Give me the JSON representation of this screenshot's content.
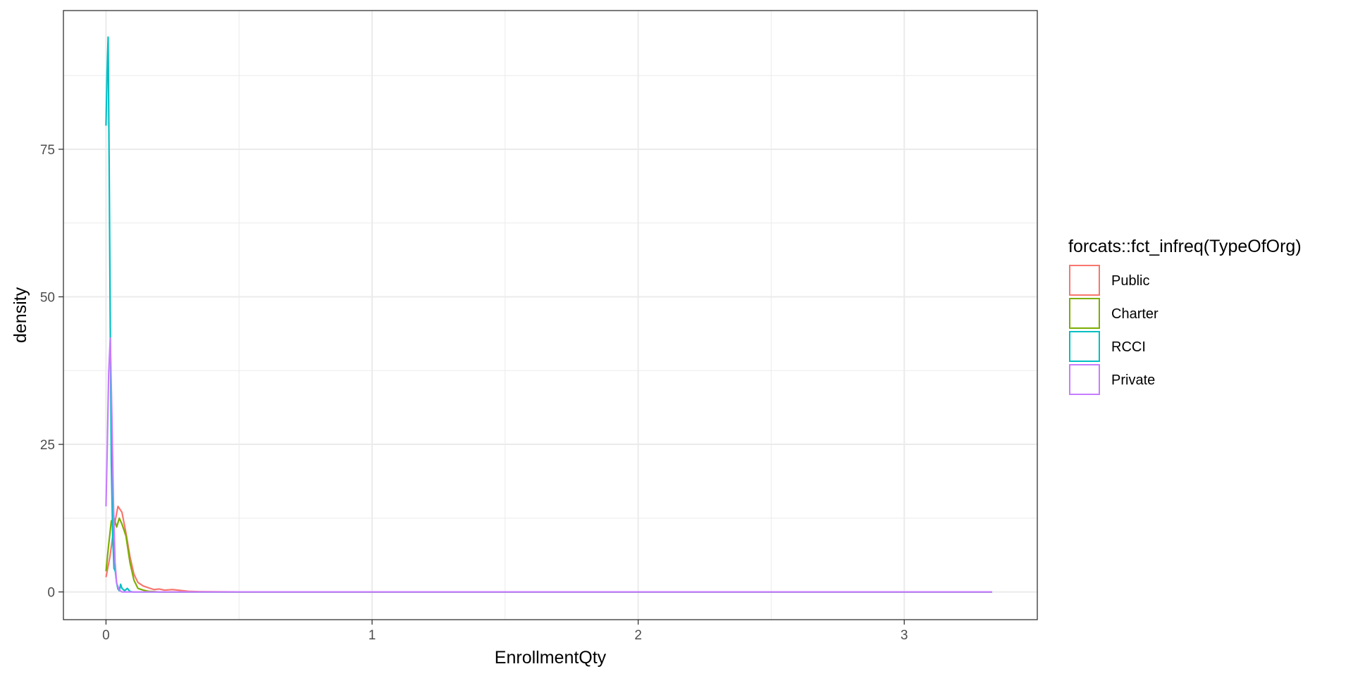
{
  "chart_data": {
    "type": "line",
    "xlabel": "EnrollmentQty",
    "ylabel": "density",
    "xlim": [
      -0.16,
      3.5
    ],
    "ylim": [
      -4.7,
      98.5
    ],
    "x_ticks": [
      0,
      1,
      2,
      3
    ],
    "y_ticks": [
      0,
      25,
      50,
      75
    ],
    "x_tick_labels": [
      "0",
      "1",
      "2",
      "3"
    ],
    "y_tick_labels": [
      "0",
      "25",
      "50",
      "75"
    ],
    "grid": true,
    "legend": {
      "title": "forcats::fct_infreq(TypeOfOrg)",
      "position": "right"
    },
    "series": [
      {
        "name": "Public",
        "color": "#F8766D",
        "points": [
          [
            0,
            2.5
          ],
          [
            0.015,
            6
          ],
          [
            0.03,
            11
          ],
          [
            0.045,
            14.5
          ],
          [
            0.06,
            13.5
          ],
          [
            0.075,
            10
          ],
          [
            0.09,
            6
          ],
          [
            0.105,
            3
          ],
          [
            0.12,
            1.6
          ],
          [
            0.14,
            1.0
          ],
          [
            0.16,
            0.7
          ],
          [
            0.18,
            0.4
          ],
          [
            0.2,
            0.5
          ],
          [
            0.22,
            0.3
          ],
          [
            0.25,
            0.4
          ],
          [
            0.28,
            0.25
          ],
          [
            0.31,
            0.1
          ],
          [
            0.35,
            0.05
          ],
          [
            0.5,
            0
          ],
          [
            1.0,
            0
          ],
          [
            2.0,
            0
          ],
          [
            3.33,
            0
          ]
        ]
      },
      {
        "name": "Charter",
        "color": "#7CAE00",
        "points": [
          [
            0,
            3.5
          ],
          [
            0.01,
            8
          ],
          [
            0.02,
            12
          ],
          [
            0.03,
            12.5
          ],
          [
            0.04,
            11
          ],
          [
            0.05,
            12.5
          ],
          [
            0.06,
            11.5
          ],
          [
            0.075,
            9.5
          ],
          [
            0.09,
            5
          ],
          [
            0.105,
            2
          ],
          [
            0.12,
            0.6
          ],
          [
            0.14,
            0.3
          ],
          [
            0.16,
            0.1
          ],
          [
            0.2,
            0
          ],
          [
            0.5,
            0
          ],
          [
            1.0,
            0
          ],
          [
            2.0,
            0
          ],
          [
            3.33,
            0
          ]
        ]
      },
      {
        "name": "RCCI",
        "color": "#00BFC4",
        "points": [
          [
            0,
            79
          ],
          [
            0.004,
            88
          ],
          [
            0.008,
            94
          ],
          [
            0.012,
            72
          ],
          [
            0.016,
            45
          ],
          [
            0.02,
            22
          ],
          [
            0.025,
            10
          ],
          [
            0.03,
            4
          ],
          [
            0.035,
            3.5
          ],
          [
            0.04,
            1.5
          ],
          [
            0.045,
            0.5
          ],
          [
            0.05,
            0.2
          ],
          [
            0.055,
            1.3
          ],
          [
            0.06,
            0.6
          ],
          [
            0.07,
            0.2
          ],
          [
            0.08,
            0.6
          ],
          [
            0.09,
            0.1
          ],
          [
            0.1,
            0
          ],
          [
            0.3,
            0
          ],
          [
            1.0,
            0
          ],
          [
            2.0,
            0
          ],
          [
            3.33,
            0
          ]
        ]
      },
      {
        "name": "Private",
        "color": "#C77CFF",
        "points": [
          [
            0,
            14.5
          ],
          [
            0.005,
            25
          ],
          [
            0.01,
            37
          ],
          [
            0.016,
            43
          ],
          [
            0.022,
            30
          ],
          [
            0.028,
            15
          ],
          [
            0.034,
            5
          ],
          [
            0.04,
            1.5
          ],
          [
            0.05,
            0.3
          ],
          [
            0.06,
            0
          ],
          [
            0.2,
            0
          ],
          [
            1.0,
            0
          ],
          [
            2.0,
            0
          ],
          [
            3.33,
            0
          ]
        ]
      }
    ]
  }
}
